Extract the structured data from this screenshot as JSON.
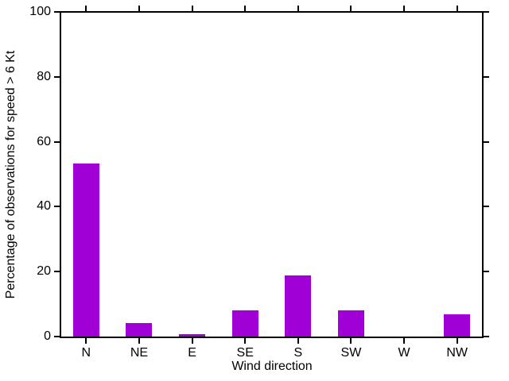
{
  "chart_data": {
    "type": "bar",
    "title": "",
    "categories": [
      "N",
      "NE",
      "E",
      "SE",
      "S",
      "SW",
      "W",
      "NW"
    ],
    "values": [
      53.3,
      4.2,
      0.8,
      8.0,
      18.9,
      8.0,
      0.0,
      6.8
    ],
    "xlabel": "Wind direction",
    "ylabel": "Percentage of observations for speed > 6 Kt",
    "ylim": [
      0,
      100
    ],
    "yticks": [
      0,
      20,
      40,
      60,
      80,
      100
    ],
    "bar_color": "#a000d6",
    "axis_color": "#000000",
    "background_color": "#ffffff",
    "grid": false,
    "legend_position": "none",
    "tick_direction": "out",
    "box_frame": true
  }
}
